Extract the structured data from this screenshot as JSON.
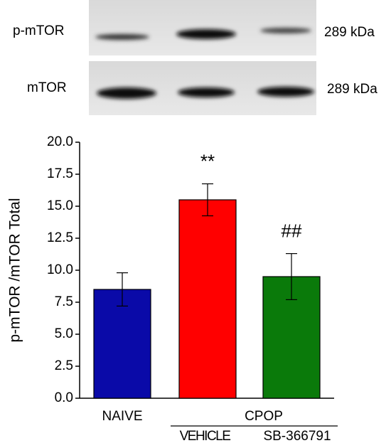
{
  "blot": {
    "rows": [
      {
        "label": "p-mTOR",
        "size": "289 kDa"
      },
      {
        "label": "mTOR",
        "size": "289 kDa"
      }
    ]
  },
  "chart_data": {
    "type": "bar",
    "y_label": "p-mTOR /mTOR Total",
    "categories": [
      "NAIVE",
      "VEHICLE",
      "SB-366791"
    ],
    "group_label": "CPOP",
    "values": [
      8.5,
      15.5,
      9.5
    ],
    "errors": [
      1.3,
      1.25,
      1.8
    ],
    "colors": [
      "#0a0aa8",
      "#ff0000",
      "#0a7a0a"
    ],
    "value_annotations": [
      null,
      "**",
      "##"
    ],
    "ylim": [
      0,
      20
    ],
    "yticks": [
      {
        "value": 0,
        "label": "0.0"
      },
      2.5,
      {
        "value": 5,
        "label": "5.0"
      },
      7.5,
      {
        "value": 10,
        "label": "10.0"
      },
      12.5,
      {
        "value": 15,
        "label": "15.0"
      },
      17.5,
      {
        "value": 20,
        "label": "20.0"
      }
    ]
  }
}
